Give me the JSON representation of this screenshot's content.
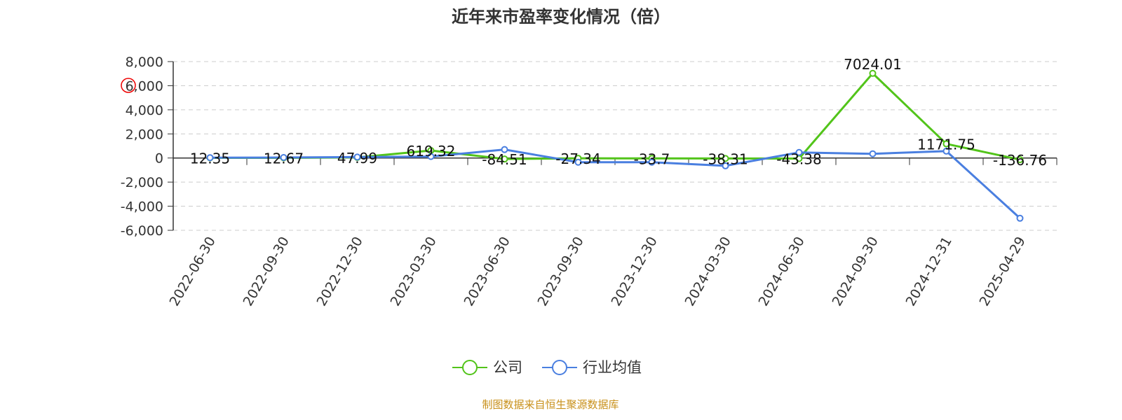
{
  "chart_data": {
    "type": "line",
    "title": "近年来市盈率变化情况（倍）",
    "categories": [
      "2022-06-30",
      "2022-09-30",
      "2022-12-30",
      "2023-03-30",
      "2023-06-30",
      "2023-09-30",
      "2023-12-30",
      "2024-03-30",
      "2024-06-30",
      "2024-09-30",
      "2024-12-31",
      "2025-04-29"
    ],
    "ylim": [
      -6000,
      8000
    ],
    "yticks": [
      8000,
      6000,
      4000,
      2000,
      0,
      -2000,
      -4000,
      -6000
    ],
    "ytick_labels": [
      "8,000",
      "6,000",
      "4,000",
      "2,000",
      "0",
      "-2,000",
      "-4,000",
      "-6,000"
    ],
    "grid": true,
    "legend_position": "bottom",
    "series": [
      {
        "name": "公司",
        "color": "#52c41a",
        "values": [
          12.35,
          12.67,
          47.99,
          619.32,
          -84.51,
          -27.34,
          -33.7,
          -38.31,
          -43.38,
          7024.01,
          1171.75,
          -136.76
        ],
        "labels": [
          "12.35",
          "12.67",
          "47.99",
          "619.32",
          "-84.51",
          "-27.34",
          "-33.7",
          "-38.31",
          "-43.38",
          "7024.01",
          "1171.75",
          "-136.76"
        ]
      },
      {
        "name": "行业均值",
        "color": "#4a7fe0",
        "values": [
          30,
          40,
          80,
          120,
          700,
          -350,
          -350,
          -650,
          460,
          350,
          570,
          -5000
        ]
      }
    ]
  },
  "source": "制图数据来自恒生聚源数据库"
}
